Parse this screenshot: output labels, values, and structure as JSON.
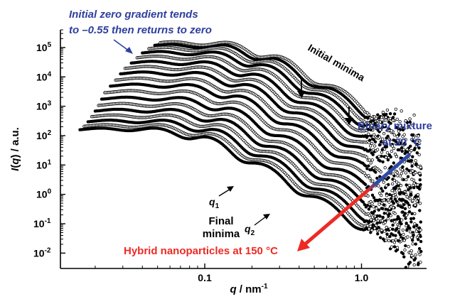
{
  "chart_data": {
    "type": "scatter",
    "x_scale": "log",
    "y_scale": "log",
    "xlim": [
      0.012,
      2.6
    ],
    "ylim": [
      0.003,
      400000
    ],
    "x_ticks": [
      {
        "value": 0.1,
        "label": "0.1"
      },
      {
        "value": 1.0,
        "label": "1.0"
      }
    ],
    "y_ticks": [
      {
        "value": 0.01,
        "base": "10",
        "exp": "-2"
      },
      {
        "value": 0.1,
        "base": "10",
        "exp": "-1"
      },
      {
        "value": 1,
        "base": "10",
        "exp": "0"
      },
      {
        "value": 10,
        "base": "10",
        "exp": "1"
      },
      {
        "value": 100,
        "base": "10",
        "exp": "2"
      },
      {
        "value": 1000,
        "base": "10",
        "exp": "3"
      },
      {
        "value": 10000,
        "base": "10",
        "exp": "4"
      },
      {
        "value": 100000,
        "base": "10",
        "exp": "5"
      }
    ],
    "xlabel": {
      "var": "q",
      "unit": " / nm",
      "unit_exp": "-1"
    },
    "ylabel": {
      "var": "I",
      "arg": "q",
      "unit": " / a.u."
    },
    "grid": false,
    "legend": "none",
    "series_count": 18,
    "series": [
      {
        "plateau": 160,
        "q_start": 0.016,
        "q_knee": 0.095,
        "marker": "filled"
      },
      {
        "plateau": 210,
        "q_start": 0.017,
        "q_knee": 0.1,
        "marker": "open"
      },
      {
        "plateau": 300,
        "q_start": 0.018,
        "q_knee": 0.105,
        "marker": "filled"
      },
      {
        "plateau": 450,
        "q_start": 0.019,
        "q_knee": 0.11,
        "marker": "open"
      },
      {
        "plateau": 700,
        "q_start": 0.02,
        "q_knee": 0.115,
        "marker": "filled"
      },
      {
        "plateau": 1100,
        "q_start": 0.021,
        "q_knee": 0.12,
        "marker": "open"
      },
      {
        "plateau": 1800,
        "q_start": 0.022,
        "q_knee": 0.126,
        "marker": "filled"
      },
      {
        "plateau": 3000,
        "q_start": 0.023,
        "q_knee": 0.132,
        "marker": "open"
      },
      {
        "plateau": 5000,
        "q_start": 0.025,
        "q_knee": 0.138,
        "marker": "filled"
      },
      {
        "plateau": 8000,
        "q_start": 0.027,
        "q_knee": 0.145,
        "marker": "open"
      },
      {
        "plateau": 13000,
        "q_start": 0.029,
        "q_knee": 0.152,
        "marker": "filled"
      },
      {
        "plateau": 20000,
        "q_start": 0.031,
        "q_knee": 0.16,
        "marker": "open"
      },
      {
        "plateau": 30000,
        "q_start": 0.034,
        "q_knee": 0.17,
        "marker": "filled"
      },
      {
        "plateau": 45000,
        "q_start": 0.037,
        "q_knee": 0.18,
        "marker": "open"
      },
      {
        "plateau": 65000,
        "q_start": 0.04,
        "q_knee": 0.19,
        "marker": "filled"
      },
      {
        "plateau": 90000,
        "q_start": 0.044,
        "q_knee": 0.2,
        "marker": "open"
      },
      {
        "plateau": 115000,
        "q_start": 0.048,
        "q_knee": 0.21,
        "marker": "filled"
      },
      {
        "plateau": 140000,
        "q_start": 0.052,
        "q_knee": 0.22,
        "marker": "open"
      }
    ],
    "annotations": {
      "top_note_line1": "Initial zero gradient tends",
      "top_note_line2": "to –0.55 then returns to zero",
      "initial_minima": "Initial minima",
      "binary_line1": "Binary mixture",
      "binary_line2": "at 20 °C",
      "hybrid": "Hybrid nanoparticles at 150 °C",
      "final_line1": "Final",
      "final_line2": "minima",
      "q1_var": "q",
      "q1_sub": "1",
      "q2_var": "q",
      "q2_sub": "2"
    },
    "colors": {
      "note_blue": "#2e3f9e",
      "arrow_blue": "#2f49a8",
      "arrow_red": "#ee2a24",
      "hybrid_red": "#ee2a24",
      "markers": "#000000"
    }
  }
}
